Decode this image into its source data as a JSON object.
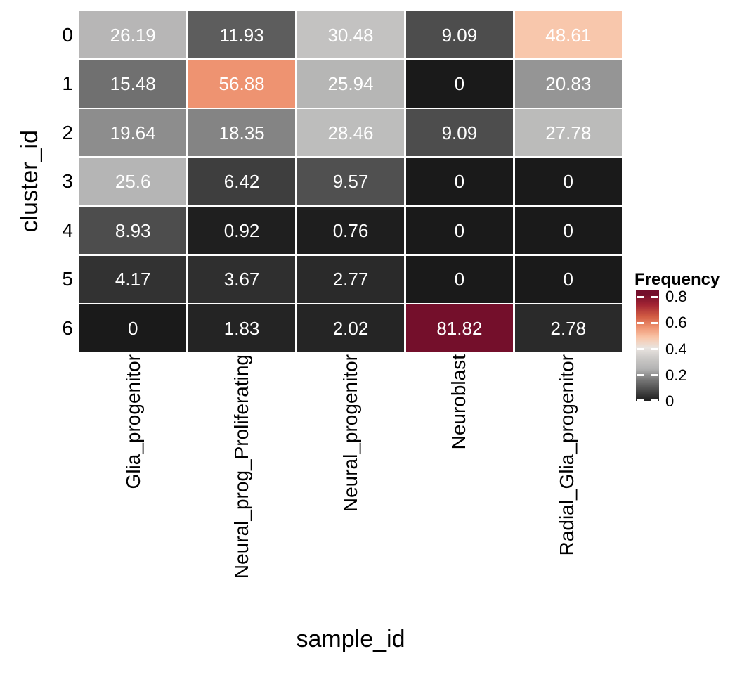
{
  "chart_data": {
    "type": "heatmap",
    "title": "",
    "xlabel": "sample_id",
    "ylabel": "cluster_id",
    "x_categories": [
      "Glia_progenitor",
      "Neural_prog_Proliferating",
      "Neural_progenitor",
      "Neuroblast",
      "Radial_Glia_progenitor"
    ],
    "y_categories": [
      "0",
      "1",
      "2",
      "3",
      "4",
      "5",
      "6"
    ],
    "cell_values_percent": [
      [
        26.19,
        11.93,
        30.48,
        9.09,
        48.61
      ],
      [
        15.48,
        56.88,
        25.94,
        0,
        20.83
      ],
      [
        19.64,
        18.35,
        28.46,
        9.09,
        27.78
      ],
      [
        25.6,
        6.42,
        9.57,
        0,
        0
      ],
      [
        8.93,
        0.92,
        0.76,
        0,
        0
      ],
      [
        4.17,
        3.67,
        2.77,
        0,
        0
      ],
      [
        0,
        1.83,
        2.02,
        81.82,
        2.78
      ]
    ],
    "cell_text_color": "#ffffff",
    "grid_gap_color": "#ffffff",
    "legend": {
      "title": "Frequency",
      "ticks": [
        0.8,
        0.6,
        0.4,
        0.2,
        0
      ],
      "tick_labels": [
        "0.8",
        "0.6",
        "0.4",
        "0.2",
        "0"
      ],
      "bar_max": 0.85
    },
    "color_scale": {
      "comment": "frequency value (0-1) to fill color stops, dark-grey to white to dark-red",
      "stops": [
        [
          0.0,
          "#1a1a1a"
        ],
        [
          0.09,
          "#4d4d4d"
        ],
        [
          0.16,
          "#737373"
        ],
        [
          0.25,
          "#b3b3b3"
        ],
        [
          0.33,
          "#cbc9c7"
        ],
        [
          0.41,
          "#e9e4e0"
        ],
        [
          0.49,
          "#f9c6a9"
        ],
        [
          0.57,
          "#ee9270"
        ],
        [
          0.65,
          "#d25c43"
        ],
        [
          0.74,
          "#a22433"
        ],
        [
          0.8182,
          "#740f2b"
        ]
      ]
    },
    "axis_ranges": {
      "x": "categorical (5 samples)",
      "y": "categorical (7 clusters)"
    },
    "grid_on": false,
    "legend_position": "right"
  }
}
